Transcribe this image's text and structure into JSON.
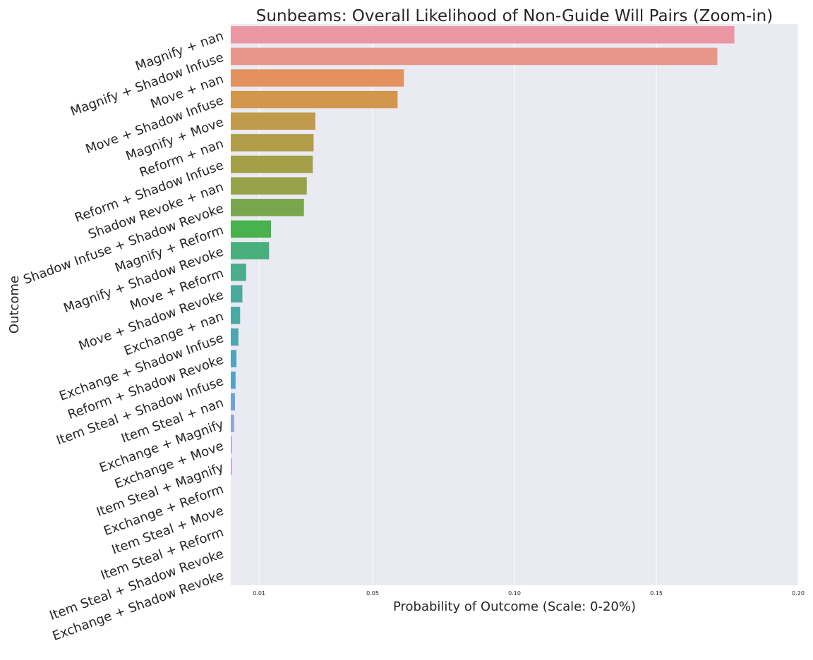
{
  "chart_data": {
    "type": "bar",
    "orientation": "horizontal",
    "title": "Sunbeams: Overall Likelihood of Non-Guide Will Pairs (Zoom-in)",
    "xlabel": "Probability of Outcome (Scale: 0-20%)",
    "ylabel": "Outcome",
    "xlim": [
      0,
      0.2
    ],
    "grid": true,
    "legend": "none",
    "plot_background": "#eaeaf2",
    "xticks": [
      0.01,
      0.05,
      0.1,
      0.15,
      0.2
    ],
    "xtick_labels": [
      "0.01",
      "0.05",
      "0.10",
      "0.15",
      "0.20"
    ],
    "categories": [
      "Magnify + nan",
      "Magnify + Shadow Infuse",
      "Move + nan",
      "Move + Shadow Infuse",
      "Magnify + Move",
      "Reform + nan",
      "Reform + Shadow Infuse",
      "Shadow Revoke + nan",
      "Shadow Infuse + Shadow Revoke",
      "Magnify + Reform",
      "Magnify + Shadow Revoke",
      "Move + Reform",
      "Move + Shadow Revoke",
      "Exchange + nan",
      "Exchange + Shadow Infuse",
      "Reform + Shadow Revoke",
      "Item Steal + Shadow Infuse",
      "Item Steal + nan",
      "Exchange + Magnify",
      "Exchange + Move",
      "Item Steal + Magnify",
      "Exchange + Reform",
      "Item Steal + Move",
      "Item Steal + Reform",
      "Item Steal + Shadow Revoke",
      "Exchange + Shadow Revoke"
    ],
    "values": [
      0.1775,
      0.1715,
      0.061,
      0.0588,
      0.0298,
      0.0292,
      0.0289,
      0.0268,
      0.0258,
      0.0142,
      0.0135,
      0.0054,
      0.0041,
      0.0033,
      0.0027,
      0.002,
      0.0017,
      0.0015,
      0.0012,
      0.0004,
      0.0004,
      0.0,
      0.0,
      0.0,
      0.0,
      0.0
    ],
    "colors": [
      "#ea96a3",
      "#e8968a",
      "#e3925f",
      "#d2964c",
      "#c09b4b",
      "#b19d49",
      "#a4a048",
      "#97a348",
      "#7aa74d",
      "#48b24c",
      "#49af7c",
      "#4aad8d",
      "#4aab9a",
      "#4aa9a5",
      "#4ba7b0",
      "#4da5bf",
      "#53a3cf",
      "#6ba4dc",
      "#8ea4de",
      "#a89ee0",
      "#c596dc",
      "#e18fd0",
      "#e594c0",
      "#e797b0",
      "#ea98a8",
      "#ea96a3"
    ]
  }
}
